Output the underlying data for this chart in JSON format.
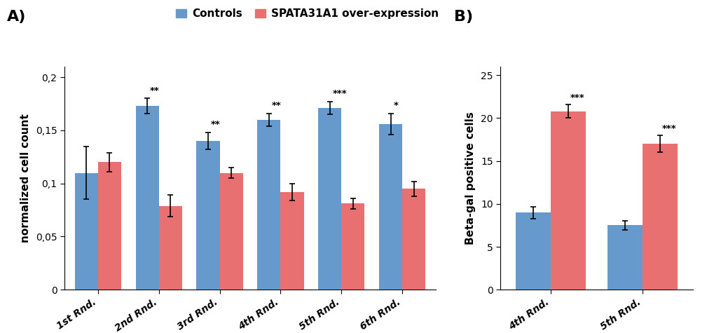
{
  "panel_A": {
    "categories": [
      "1st Rnd.",
      "2nd Rnd.",
      "3rd Rnd.",
      "4th Rnd.",
      "5th Rnd.",
      "6th Rnd."
    ],
    "control_values": [
      0.11,
      0.173,
      0.14,
      0.16,
      0.171,
      0.156
    ],
    "control_errors": [
      0.025,
      0.007,
      0.008,
      0.006,
      0.006,
      0.01
    ],
    "overexp_values": [
      0.12,
      0.079,
      0.11,
      0.092,
      0.081,
      0.095
    ],
    "overexp_errors": [
      0.009,
      0.01,
      0.005,
      0.008,
      0.005,
      0.007
    ],
    "significance": [
      "",
      "**",
      "**",
      "**",
      "***",
      "*"
    ],
    "ylabel": "normalized cell count",
    "ylim": [
      0,
      0.21
    ],
    "yticks": [
      0,
      0.05,
      0.1,
      0.15,
      0.2
    ],
    "ytick_labels": [
      "0",
      "0,05",
      "0,1",
      "0,15",
      "0,2"
    ]
  },
  "panel_B": {
    "categories": [
      "4th Rnd.",
      "5th Rnd."
    ],
    "control_values": [
      9.0,
      7.5
    ],
    "control_errors": [
      0.7,
      0.5
    ],
    "overexp_values": [
      20.8,
      17.0
    ],
    "overexp_errors": [
      0.8,
      1.0
    ],
    "significance": [
      "***",
      "***"
    ],
    "ylabel": "Beta-gal positive cells",
    "ylim": [
      0,
      26
    ],
    "yticks": [
      0,
      5,
      10,
      15,
      20,
      25
    ]
  },
  "control_color": "#6699CC",
  "overexp_color": "#E87070",
  "bar_width": 0.38,
  "legend_label_control": "Controls",
  "legend_label_overexp": "SPATA31A1 over-expression",
  "panel_A_label": "A)",
  "panel_B_label": "B)"
}
